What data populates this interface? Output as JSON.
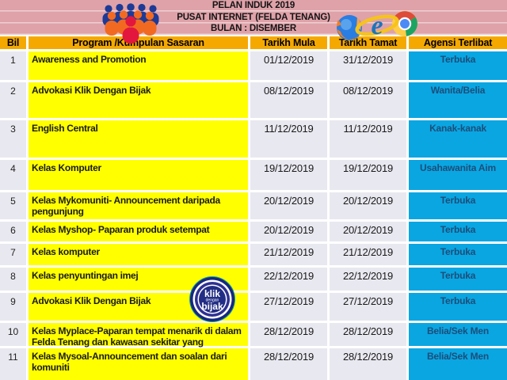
{
  "header": {
    "title_lines": [
      "PELAN INDUK 2019",
      "PUSAT INTERNET (FELDA TENANG)",
      "BULAN : DISEMBER"
    ],
    "icons": {
      "left": "people-group-icon",
      "right": "browser-logos-icon"
    }
  },
  "table": {
    "columns": [
      "Bil",
      "Program /Kumpulan Sasaran",
      "Tarikh Mula",
      "Tarikh Tamat",
      "Agensi Terlibat"
    ],
    "rows": [
      {
        "bil": "1",
        "program": "Awareness and Promotion",
        "mula": "01/12/2019",
        "tamat": "31/12/2019",
        "agensi": "Terbuka"
      },
      {
        "bil": "2",
        "program": "Advokasi Klik Dengan Bijak",
        "mula": "08/12/2019",
        "tamat": "08/12/2019",
        "agensi": "Wanita/Belia"
      },
      {
        "bil": "3",
        "program": "English Central",
        "mula": "11/12/2019",
        "tamat": "11/12/2019",
        "agensi": "Kanak-kanak"
      },
      {
        "bil": "4",
        "program": "Kelas Komputer",
        "mula": "19/12/2019",
        "tamat": "19/12/2019",
        "agensi": "Usahawanita Aim"
      },
      {
        "bil": "5",
        "program": "Kelas Mykomuniti- Announcement daripada pengunjung",
        "mula": "20/12/2019",
        "tamat": "20/12/2019",
        "agensi": "Terbuka"
      },
      {
        "bil": "6",
        "program": "Kelas Myshop- Paparan produk setempat",
        "mula": "20/12/2019",
        "tamat": "20/12/2019",
        "agensi": "Terbuka"
      },
      {
        "bil": "7",
        "program": "Kelas komputer",
        "mula": "21/12/2019",
        "tamat": "21/12/2019",
        "agensi": "Terbuka"
      },
      {
        "bil": "8",
        "program": "Kelas penyuntingan imej",
        "mula": "22/12/2019",
        "tamat": "22/12/2019",
        "agensi": "Terbuka"
      },
      {
        "bil": "9",
        "program": "Advokasi Klik Dengan Bijak",
        "mula": "27/12/2019",
        "tamat": "27/12/2019",
        "agensi": "Terbuka"
      },
      {
        "bil": "10",
        "program": "Kelas Myplace-Paparan tempat menarik di dalam Felda Tenang dan kawasan sekitar yang berhampiran",
        "mula": "28/12/2019",
        "tamat": "28/12/2019",
        "agensi": "Belia/Sek Men"
      },
      {
        "bil": "11",
        "program": "Kelas Mysoal-Announcement dan soalan dari komuniti",
        "mula": "28/12/2019",
        "tamat": "28/12/2019",
        "agensi": "Belia/Sek Men"
      }
    ]
  },
  "badge": {
    "lines": [
      "klik",
      "dengan",
      "bijak"
    ]
  },
  "colors": {
    "banner_pink": "#dfa2a9",
    "banner_stripe": "#eed0d2",
    "header_gold": "#f5a900",
    "program_yellow": "#ffff00",
    "cell_gray": "#e8e8f0",
    "agensi_cyan": "#0aa6e2",
    "agensi_text": "#1c4e79",
    "badge_navy": "#222e85"
  }
}
